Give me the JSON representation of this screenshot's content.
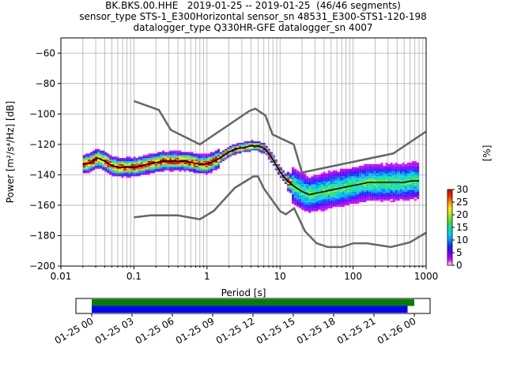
{
  "header": {
    "title_lines": [
      "BK.BKS.00.HHE   2019-01-25 -- 2019-01-25  (46/46 segments)",
      "sensor_type STS-1_E300Horizontal sensor_sn 48531_E300-STS1-120-198",
      "datalogger_type Q330HR-GFE datalogger_sn 4007"
    ]
  },
  "chart_data": [
    {
      "type": "heatmap",
      "title": "BK.BKS.00.HHE   2019-01-25 -- 2019-01-25  (46/46 segments)",
      "xlabel": "Period [s]",
      "ylabel": "Power [m²/s⁴/Hz] [dB]",
      "x_scale": "log",
      "xlim": [
        0.01,
        1000
      ],
      "ylim": [
        -200,
        -50
      ],
      "x_ticks": [
        0.01,
        0.1,
        1,
        10,
        100,
        1000
      ],
      "x_tick_labels": [
        "0.01",
        "0.1",
        "1",
        "10",
        "100",
        "1000"
      ],
      "y_ticks": [
        -200,
        -180,
        -160,
        -140,
        -120,
        -100,
        -80,
        -60
      ],
      "y_tick_labels": [
        "−200",
        "−180",
        "−160",
        "−140",
        "−120",
        "−100",
        "−80",
        "−60"
      ],
      "grid": true,
      "colorbar": {
        "label": "[%]",
        "min": 0,
        "max": 30,
        "ticks": [
          0,
          5,
          10,
          15,
          20,
          25,
          30
        ],
        "colormap": [
          "#ffffff",
          "#d400ff",
          "#6b00ff",
          "#1e1eff",
          "#0090ff",
          "#00d0ff",
          "#00e6a0",
          "#40e640",
          "#b4e61e",
          "#f5f000",
          "#ff9600",
          "#ff2800",
          "#d40000"
        ]
      },
      "series": [
        {
          "name": "mean",
          "color": "#000000",
          "x": [
            0.02,
            0.025,
            0.032,
            0.04,
            0.05,
            0.06,
            0.08,
            0.1,
            0.13,
            0.16,
            0.2,
            0.25,
            0.32,
            0.4,
            0.5,
            0.63,
            0.8,
            1,
            1.26,
            1.6,
            2,
            2.5,
            3.2,
            4,
            5,
            6.3,
            8,
            10,
            12.6,
            16,
            20,
            25,
            32,
            40,
            50,
            63,
            80,
            100,
            130,
            160,
            200,
            250,
            320,
            400,
            500,
            630,
            800
          ],
          "y": [
            -133,
            -132,
            -129,
            -131,
            -134,
            -135,
            -135,
            -135,
            -134,
            -133,
            -132,
            -131,
            -131,
            -131,
            -131,
            -132,
            -133,
            -133,
            -131,
            -128,
            -125,
            -123,
            -122,
            -121,
            -121,
            -123,
            -130,
            -138,
            -144,
            -148,
            -151,
            -153,
            -152,
            -151,
            -150,
            -149,
            -148,
            -147,
            -146,
            -145,
            -145,
            -145,
            -145,
            -145,
            -145,
            -144,
            -144
          ]
        }
      ],
      "model_curves": [
        {
          "name": "high-noise model",
          "color": "#666666",
          "x": [
            0.1,
            0.22,
            0.32,
            0.8,
            3.8,
            4.6,
            6.3,
            7.9,
            15.4,
            20,
            354.8,
            1000
          ],
          "y": [
            -91.5,
            -97.4,
            -110.5,
            -120,
            -98,
            -96.5,
            -101,
            -113.5,
            -120,
            -138.5,
            -126,
            -111.5
          ]
        },
        {
          "name": "low-noise model",
          "color": "#666666",
          "x": [
            0.1,
            0.17,
            0.4,
            0.8,
            1.24,
            2.4,
            4.3,
            5,
            6,
            10,
            12,
            15.6,
            21.9,
            31.6,
            45,
            70,
            101,
            154,
            328,
            600,
            1000
          ],
          "y": [
            -168,
            -166.7,
            -166.7,
            -169.2,
            -163.7,
            -148.6,
            -141.1,
            -141.1,
            -149,
            -163.8,
            -166,
            -162,
            -177,
            -185,
            -187.5,
            -187.5,
            -185,
            -185,
            -187.5,
            -184.4,
            -178
          ]
        }
      ]
    },
    {
      "type": "bar",
      "title": "",
      "x_ticks": [
        "01-25 00",
        "01-25 03",
        "01-25 06",
        "01-25 09",
        "01-25 12",
        "01-25 15",
        "01-25 18",
        "01-25 21",
        "01-26 00"
      ],
      "series": [
        {
          "color": "#008000",
          "start": "01-25 00:00",
          "end": "01-26 00:30"
        },
        {
          "color": "#0000ff",
          "start": "01-25 00:00",
          "end": "01-25 23:30"
        }
      ]
    }
  ]
}
